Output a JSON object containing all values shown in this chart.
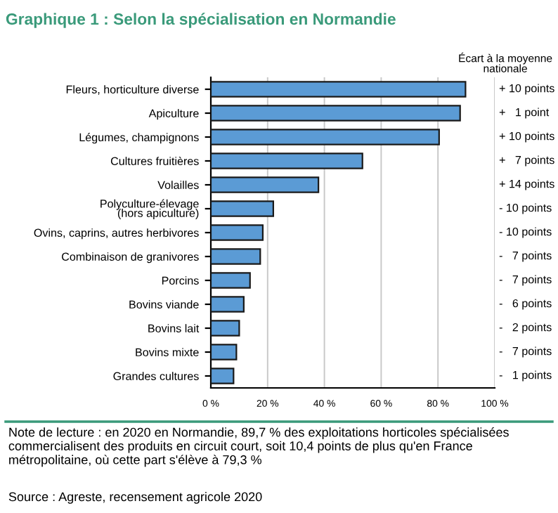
{
  "chart_data": {
    "type": "bar",
    "orientation": "horizontal",
    "title": "Graphique 1 : Selon la spécialisation en Normandie",
    "categories": [
      "Fleurs, horticulture diverse",
      "Apiculture",
      "Légumes, champignons",
      "Cultures fruitières",
      "Volailles",
      "Polyculture-élevage\n(hors apiculture)",
      "Ovins, caprins, autres herbivores",
      "Combinaison de granivores",
      "Porcins",
      "Bovins viande",
      "Bovins lait",
      "Bovins mixte",
      "Grandes cultures"
    ],
    "values": [
      89.7,
      87.8,
      80.4,
      53.4,
      37.9,
      22.0,
      18.3,
      17.4,
      13.8,
      11.6,
      10.0,
      9.0,
      8.0
    ],
    "color": "#5b9bd5",
    "xlim": [
      0,
      100
    ],
    "xticks": [
      {
        "value": 0,
        "label": "0 %"
      },
      {
        "value": 20,
        "label": "20 %"
      },
      {
        "value": 40,
        "label": "40 %"
      },
      {
        "value": 60,
        "label": "60 %"
      },
      {
        "value": 80,
        "label": "80 %"
      },
      {
        "value": 100,
        "label": "100 %"
      }
    ],
    "grid": "x",
    "y2label": "Écart à la moyenne\nnationale",
    "annotations": [
      "+ 10 points",
      "+   1 point",
      "+ 10 points",
      "+   7 points",
      "+ 14 points",
      "- 10 points",
      "- 10 points",
      "-   7 points",
      "-   7 points",
      "-   6 points",
      "-   2 points",
      "-   7 points",
      "-   1 points",
      "Note de lecture : en 2020 en Normandie, 89,7 % des exploitations horticoles spécialisées commercialisent des produits en circuit court, soit 10,4 points de plus qu'en France métropolitaine, où cette part s'élève à 79,3 %",
      "Source : Agreste, recensement agricole 2020"
    ]
  }
}
